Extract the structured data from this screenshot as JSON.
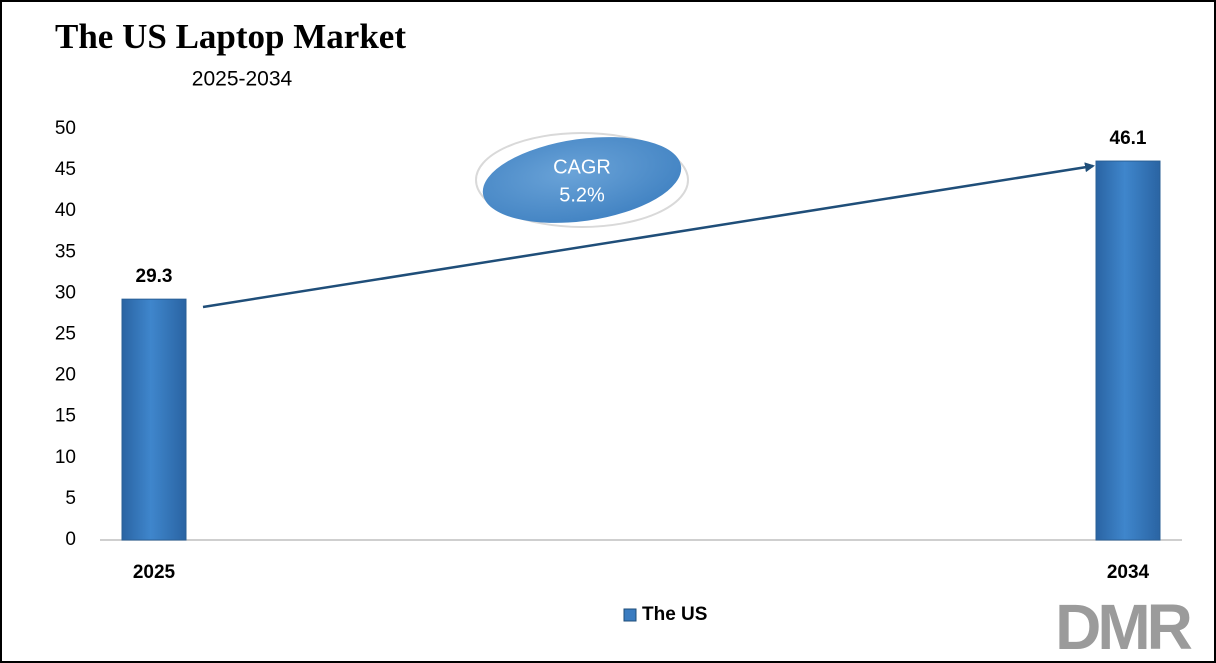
{
  "chart_data": {
    "type": "bar",
    "title": "The US Laptop Market",
    "subtitle": "2025-2034",
    "categories": [
      "2025",
      "2034"
    ],
    "series": [
      {
        "name": "The US",
        "color": "#3a7cc0",
        "values": [
          29.3,
          46.1
        ]
      }
    ],
    "ylim": [
      0,
      50
    ],
    "yticks": [
      0,
      5,
      10,
      15,
      20,
      25,
      30,
      35,
      40,
      45,
      50
    ],
    "grid": false,
    "legend": "bottom",
    "annotations": [
      "CAGR",
      "5.2%"
    ],
    "watermark": "DMR"
  }
}
